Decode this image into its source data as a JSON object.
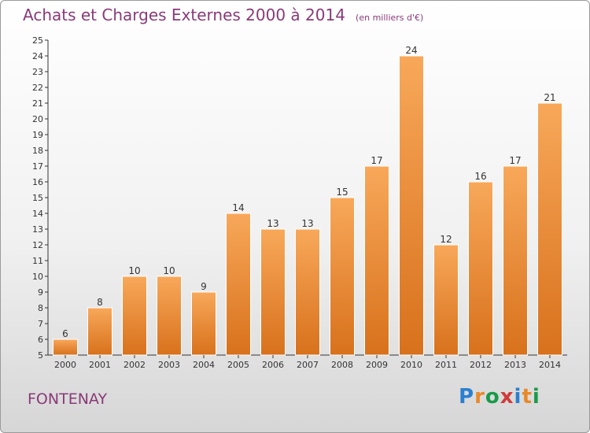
{
  "chart_data": {
    "type": "bar",
    "title": "Achats et Charges Externes 2000 à 2014",
    "subtitle": "(en milliers d'€)",
    "categories": [
      "2000",
      "2001",
      "2002",
      "2003",
      "2004",
      "2005",
      "2006",
      "2007",
      "2008",
      "2009",
      "2010",
      "2011",
      "2012",
      "2013",
      "2014"
    ],
    "values": [
      6,
      8,
      10,
      10,
      9,
      14,
      13,
      13,
      15,
      17,
      24,
      12,
      16,
      17,
      21
    ],
    "ylim": [
      5,
      25
    ],
    "yticks": [
      5,
      6,
      7,
      8,
      9,
      10,
      11,
      12,
      13,
      14,
      15,
      16,
      17,
      18,
      19,
      20,
      21,
      22,
      23,
      24,
      25
    ],
    "grid": false,
    "bar_color": "#f0913a"
  },
  "footer": {
    "city": "FONTENAY",
    "logo_text": "Proxiti",
    "logo_colors": [
      "#2a7fd0",
      "#e8892a",
      "#1a9a4a",
      "#d03a3a",
      "#2a7fd0",
      "#e8892a",
      "#1a9a4a"
    ]
  }
}
